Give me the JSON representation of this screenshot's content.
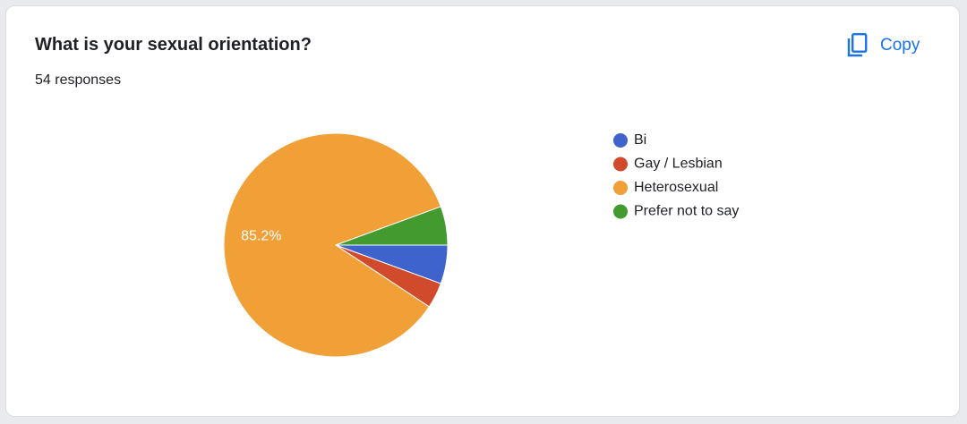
{
  "header": {
    "title": "What is your sexual orientation?",
    "responses": "54 responses",
    "copy": "Copy"
  },
  "chart_data": {
    "type": "pie",
    "categories": [
      "Bi",
      "Gay / Lesbian",
      "Heterosexual",
      "Prefer not to say"
    ],
    "values": [
      5.6,
      3.7,
      85.2,
      5.6
    ],
    "value_labels": [
      null,
      null,
      "85.2%",
      null
    ],
    "colors": [
      "#3e63cd",
      "#d24a2c",
      "#f19f37",
      "#439a2f"
    ],
    "legend": "right"
  }
}
